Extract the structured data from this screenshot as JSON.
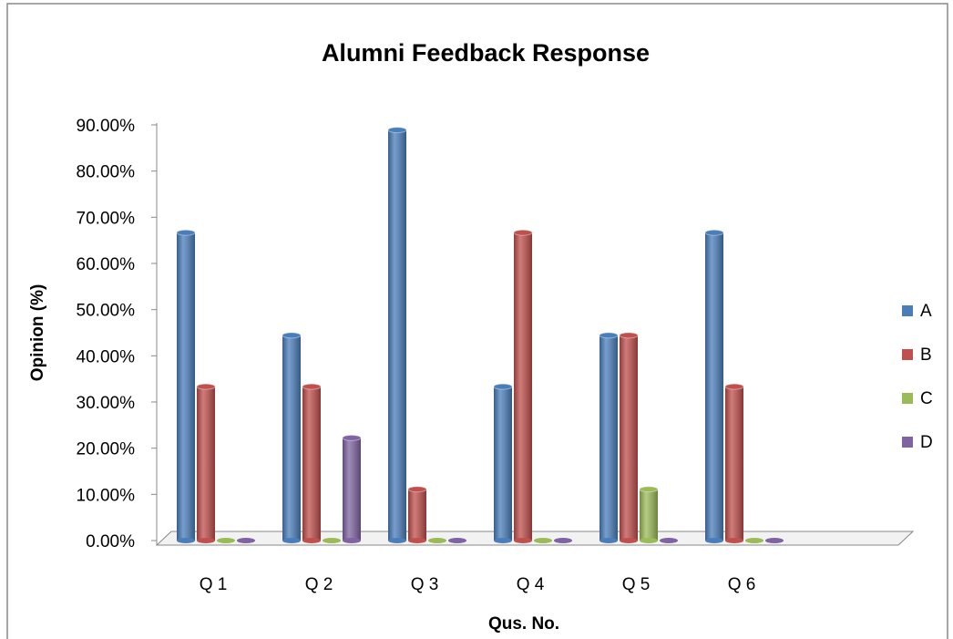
{
  "chart_data": {
    "type": "bar3d",
    "title": "Alumni Feedback Response",
    "x_label": "Qus. No.",
    "y_label": "Opinion (%)",
    "categories": [
      "Q 1",
      "Q 2",
      "Q 3",
      "Q 4",
      "Q 5",
      "Q 6"
    ],
    "series": [
      {
        "name": "A",
        "color": "#4a7ebb",
        "values": [
          66.67,
          44.44,
          88.89,
          33.33,
          44.44,
          66.67
        ]
      },
      {
        "name": "B",
        "color": "#c0504d",
        "values": [
          33.33,
          33.33,
          11.11,
          66.67,
          44.44,
          33.33
        ]
      },
      {
        "name": "C",
        "color": "#9bbb59",
        "values": [
          0,
          0,
          0,
          0,
          11.11,
          0
        ]
      },
      {
        "name": "D",
        "color": "#8064a2",
        "values": [
          0,
          22.22,
          0,
          0,
          0,
          0
        ]
      }
    ],
    "ylim": [
      0,
      90
    ],
    "yticks": [
      {
        "value": 0,
        "label": "0.00%"
      },
      {
        "value": 10,
        "label": "10.00%"
      },
      {
        "value": 20,
        "label": "20.00%"
      },
      {
        "value": 30,
        "label": "30.00%"
      },
      {
        "value": 40,
        "label": "40.00%"
      },
      {
        "value": 50,
        "label": "50.00%"
      },
      {
        "value": 60,
        "label": "60.00%"
      },
      {
        "value": 70,
        "label": "70.00%"
      },
      {
        "value": 80,
        "label": "80.00%"
      },
      {
        "value": 90,
        "label": "90.00%"
      }
    ],
    "grid": false,
    "legend": "right"
  }
}
